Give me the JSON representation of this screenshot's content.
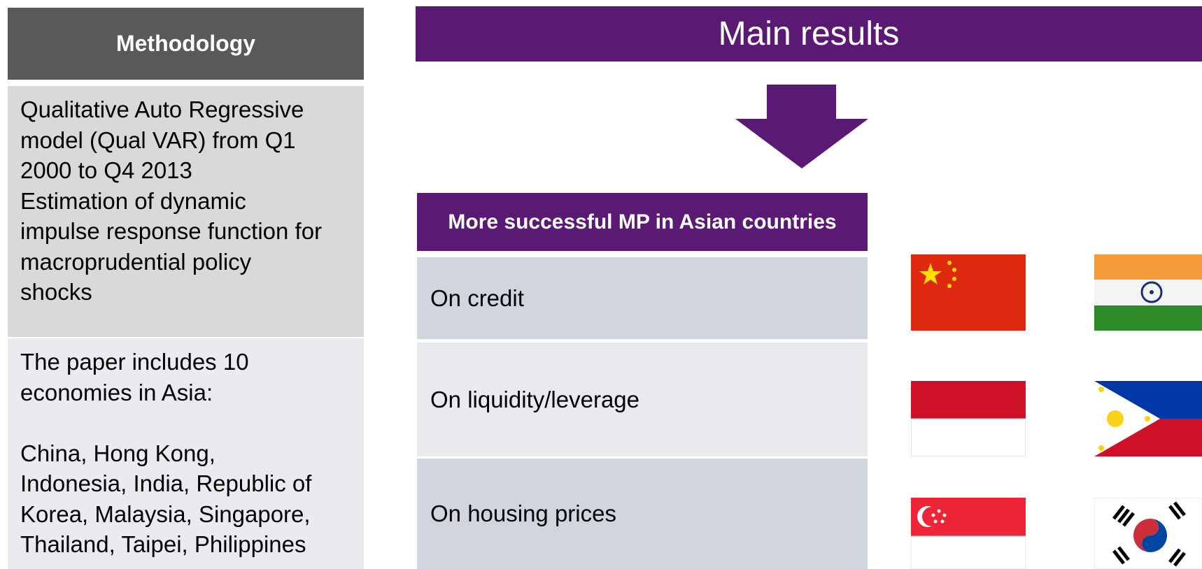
{
  "methodology": {
    "header": "Methodology",
    "model_lines": [
      "Qualitative  Auto Regressive",
      "model (Qual VAR) from Q1",
      "2000 to Q4 2013",
      "Estimation of dynamic",
      "impulse response function for",
      "macroprudential policy",
      "shocks"
    ],
    "coverage_lines": [
      "The paper includes 10",
      "economies in Asia:"
    ],
    "country_lines": [
      "China, Hong Kong,",
      "Indonesia, India, Republic of",
      "Korea, Malaysia, Singapore,",
      "Thailand, Taipei, Philippines"
    ]
  },
  "results": {
    "header": "Main results",
    "box_title": "More successful MP in Asian countries",
    "rows": [
      "On credit",
      "On liquidity/leverage",
      "On housing prices"
    ]
  }
}
